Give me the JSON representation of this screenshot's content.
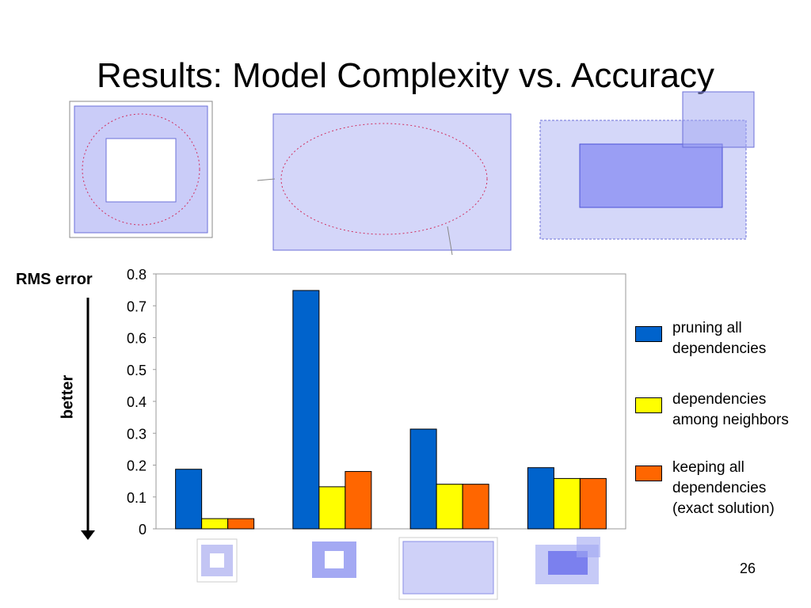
{
  "slide": {
    "title": "Results: Model Complexity vs. Accuracy",
    "page_number": "26",
    "annotation": "better"
  },
  "chart_data": {
    "type": "bar",
    "title": "",
    "ylabel": "RMS error",
    "xlabel": "",
    "ylim": [
      0,
      0.8
    ],
    "yticks": [
      "0",
      "0.1",
      "0.2",
      "0.3",
      "0.4",
      "0.5",
      "0.6",
      "0.7",
      "0.8"
    ],
    "categories": [
      "",
      "",
      "",
      ""
    ],
    "series": [
      {
        "name": "pruning all dependencies",
        "color": "#0063CC",
        "values": [
          0.187,
          0.748,
          0.313,
          0.192
        ]
      },
      {
        "name": "dependencies among neighbors",
        "color": "#FFFF00",
        "values": [
          0.032,
          0.132,
          0.14,
          0.158
        ]
      },
      {
        "name": "keeping all dependencies (exact solution)",
        "color": "#FF6600",
        "values": [
          0.032,
          0.18,
          0.14,
          0.158
        ]
      }
    ],
    "legend_position": "right",
    "grid": false
  }
}
